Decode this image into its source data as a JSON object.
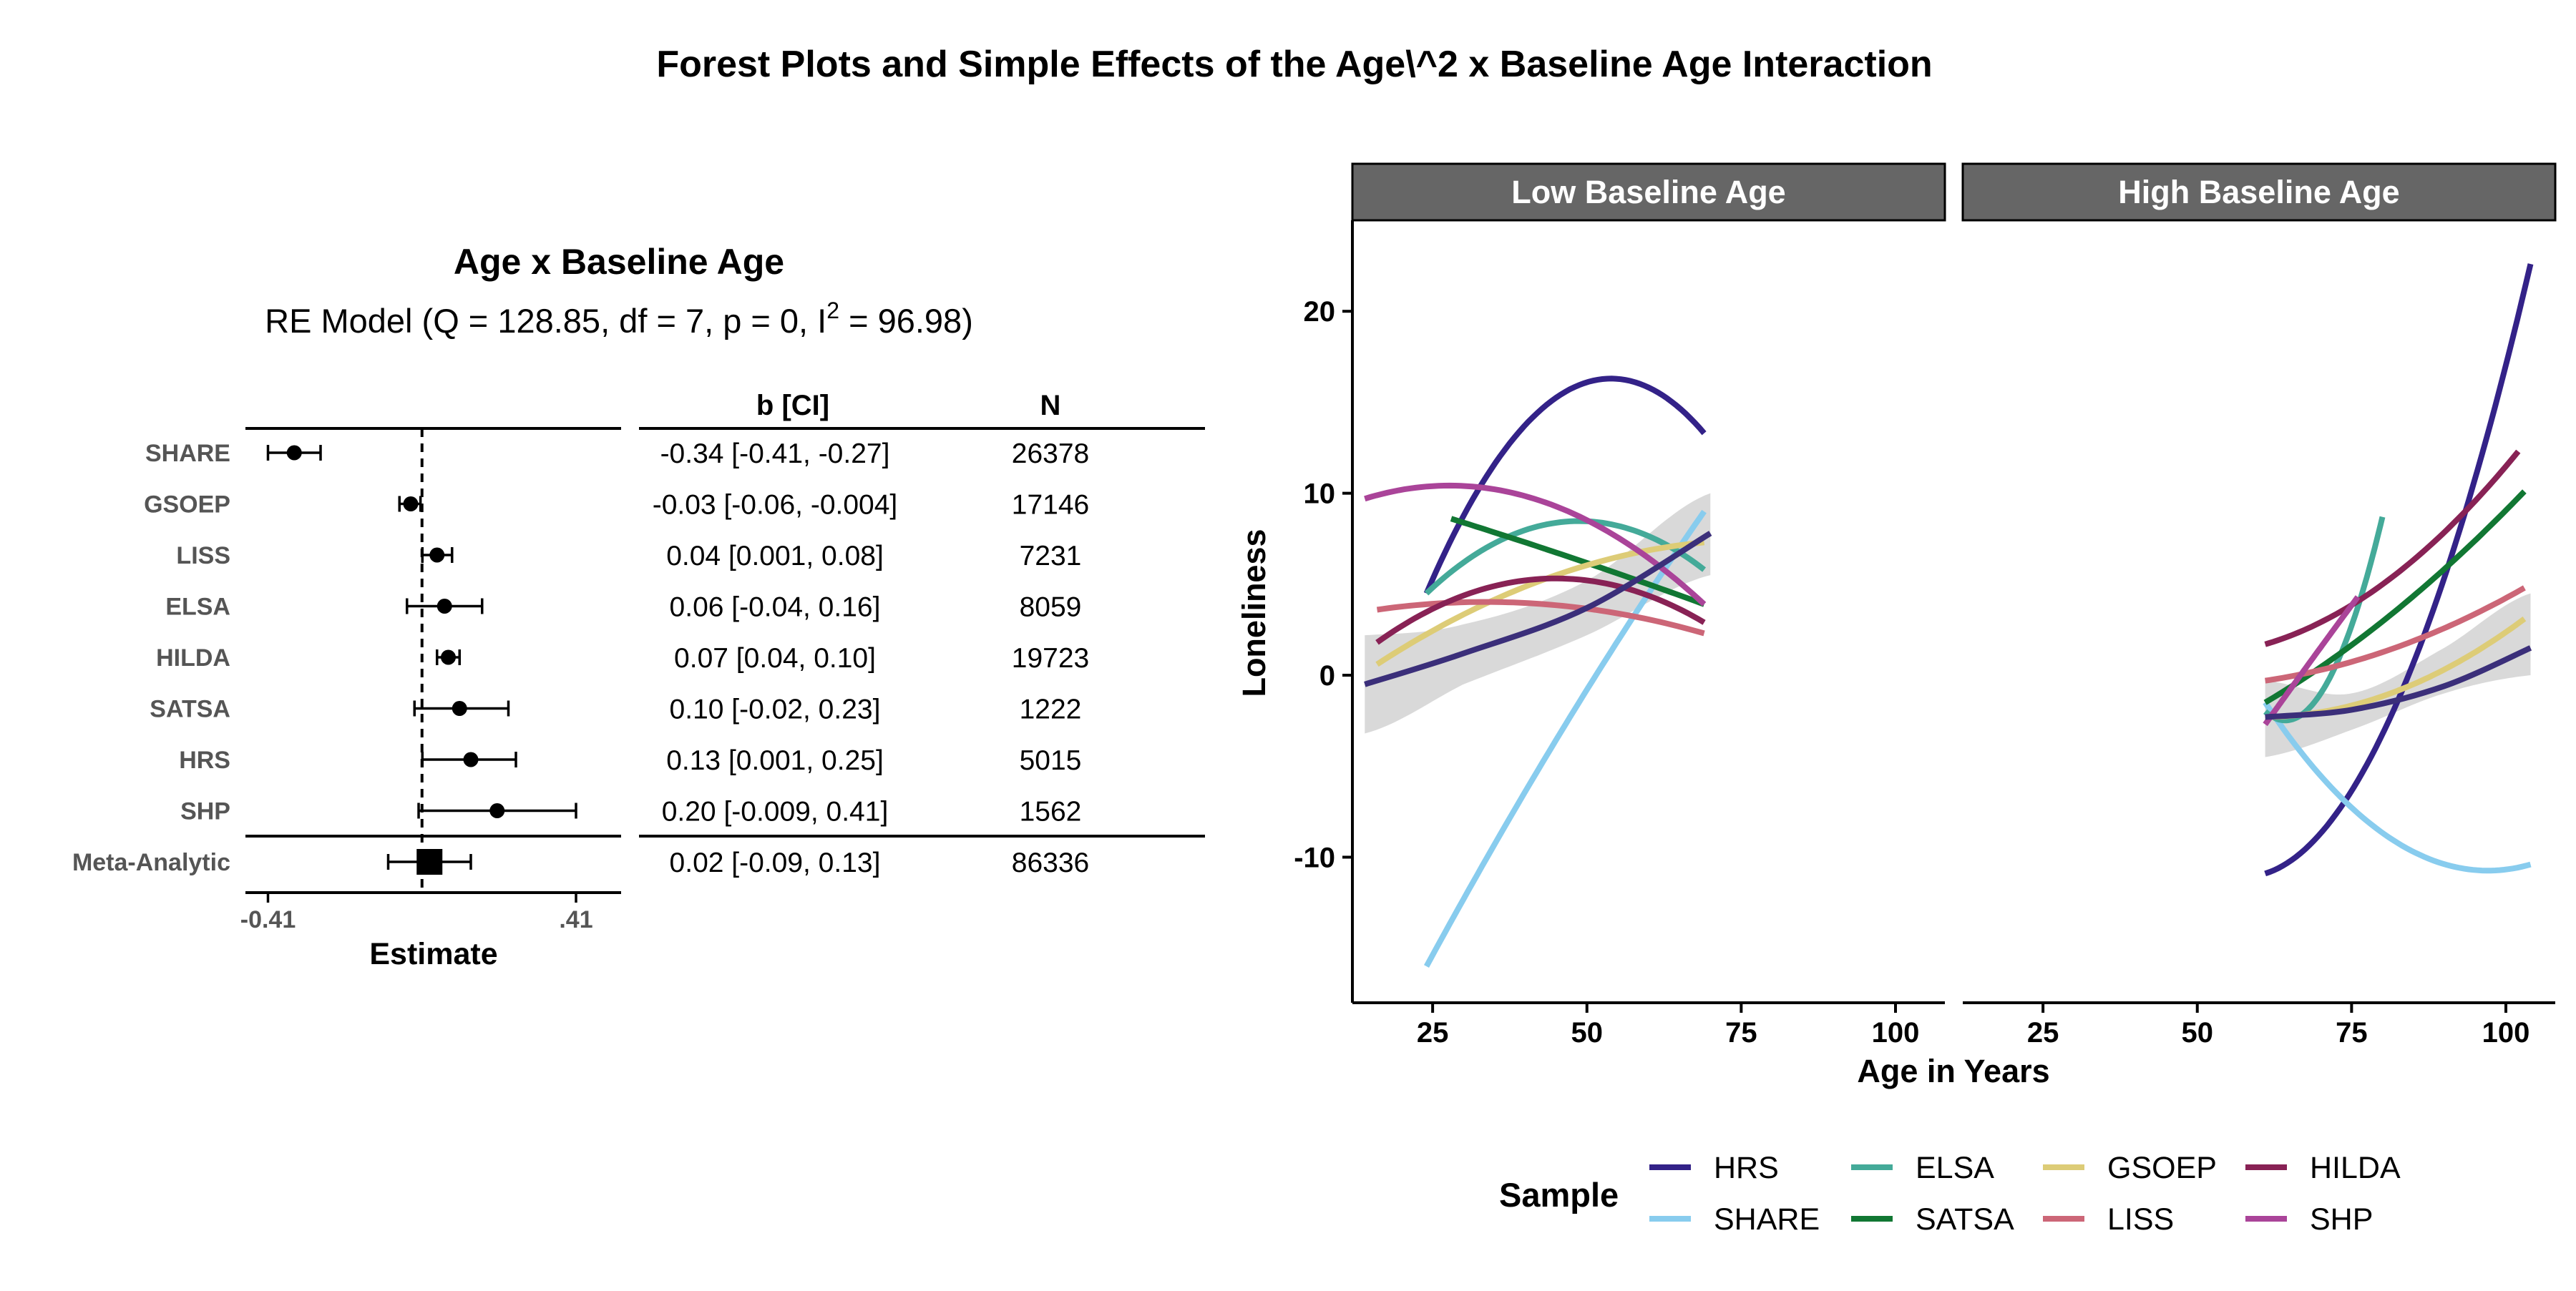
{
  "title": "Forest Plots and Simple Effects of the Age\\^2 x Baseline Age Interaction",
  "colors": {
    "HRS": "#332288",
    "SHARE": "#88CCEE",
    "ELSA": "#44AA99",
    "SATSA": "#117733",
    "GSOEP": "#DDCC77",
    "LISS": "#CC6677",
    "HILDA": "#882255",
    "SHP": "#AA4499",
    "average": "#3b2f7a",
    "ribbon": "#d2d2d2",
    "strip_bg": "#666666"
  },
  "chart_data": [
    {
      "type": "forest",
      "title": "Age x Baseline Age",
      "subtitle_prefix": "RE Model (Q = 128.85, df = 7, p = 0, I",
      "subtitle_sup": "2",
      "subtitle_suffix": " = 96.98)",
      "col_headers": [
        "b [CI]",
        "N"
      ],
      "xlabel": "Estimate",
      "xlim": [
        -0.47,
        0.53
      ],
      "xticks": [
        -0.41,
        0.41
      ],
      "xtick_labels": [
        "-0.41",
        ".41"
      ],
      "reference_line": 0,
      "studies": [
        {
          "name": "SHARE",
          "b": -0.34,
          "lo": -0.41,
          "hi": -0.27,
          "ci_text": "-0.34 [-0.41, -0.27]",
          "n": "26378"
        },
        {
          "name": "GSOEP",
          "b": -0.03,
          "lo": -0.06,
          "hi": -0.004,
          "ci_text": "-0.03 [-0.06, -0.004]",
          "n": "17146"
        },
        {
          "name": "LISS",
          "b": 0.04,
          "lo": 0.001,
          "hi": 0.08,
          "ci_text": "0.04 [0.001, 0.08]",
          "n": "7231"
        },
        {
          "name": "ELSA",
          "b": 0.06,
          "lo": -0.04,
          "hi": 0.16,
          "ci_text": "0.06 [-0.04, 0.16]",
          "n": "8059"
        },
        {
          "name": "HILDA",
          "b": 0.07,
          "lo": 0.04,
          "hi": 0.1,
          "ci_text": "0.07 [0.04, 0.10]",
          "n": "19723"
        },
        {
          "name": "SATSA",
          "b": 0.1,
          "lo": -0.02,
          "hi": 0.23,
          "ci_text": "0.10 [-0.02, 0.23]",
          "n": "1222"
        },
        {
          "name": "HRS",
          "b": 0.13,
          "lo": 0.001,
          "hi": 0.25,
          "ci_text": "0.13 [0.001, 0.25]",
          "n": "5015"
        },
        {
          "name": "SHP",
          "b": 0.2,
          "lo": -0.009,
          "hi": 0.41,
          "ci_text": "0.20 [-0.009, 0.41]",
          "n": "1562"
        }
      ],
      "meta": {
        "name": "Meta-Analytic",
        "b": 0.02,
        "lo": -0.09,
        "hi": 0.13,
        "ci_text": "0.02 [-0.09, 0.13]",
        "n": "86336"
      }
    },
    {
      "type": "line",
      "facets": [
        "Low Baseline Age",
        "High Baseline Age"
      ],
      "xlabel": "Age in Years",
      "ylabel": "Loneliness",
      "xlim": [
        12,
        108
      ],
      "ylim": [
        -18,
        25
      ],
      "xticks": [
        25,
        50,
        75,
        100
      ],
      "yticks": [
        -10,
        0,
        10,
        20
      ],
      "legend_title": "Sample",
      "legend_position": "bottom",
      "legend_order": [
        "HRS",
        "SHARE",
        "ELSA",
        "SATSA",
        "GSOEP",
        "LISS",
        "HILDA",
        "SHP"
      ],
      "panels": [
        {
          "facet": "Low Baseline Age",
          "ribbon": {
            "x": [
              14,
              30,
              50,
              70
            ],
            "lo": [
              -3.2,
              -0.5,
              2.2,
              5.5
            ],
            "hi": [
              2.2,
              2.8,
              5.2,
              10.0
            ]
          },
          "average": {
            "x": [
              14,
              30,
              50,
              70
            ],
            "y": [
              -0.5,
              1.2,
              3.7,
              7.8
            ]
          },
          "series": [
            {
              "name": "HRS",
              "x": [
                24,
                54,
                69
              ],
              "y": [
                4.5,
                16.3,
                13.3
              ]
            },
            {
              "name": "SHARE",
              "x": [
                24,
                46,
                69
              ],
              "y": [
                -16.0,
                -3.0,
                9.0
              ]
            },
            {
              "name": "ELSA",
              "x": [
                24,
                52,
                69
              ],
              "y": [
                4.5,
                8.4,
                5.8
              ]
            },
            {
              "name": "SATSA",
              "x": [
                28,
                48,
                69
              ],
              "y": [
                8.6,
                6.4,
                3.9
              ]
            },
            {
              "name": "GSOEP",
              "x": [
                16,
                45,
                69
              ],
              "y": [
                0.6,
                5.5,
                7.3
              ]
            },
            {
              "name": "LISS",
              "x": [
                16,
                38,
                69
              ],
              "y": [
                3.6,
                4.0,
                2.3
              ]
            },
            {
              "name": "HILDA",
              "x": [
                16,
                47,
                69
              ],
              "y": [
                1.8,
                5.3,
                2.9
              ]
            },
            {
              "name": "SHP",
              "x": [
                14,
                30,
                69
              ],
              "y": [
                9.7,
                10.4,
                3.9
              ]
            }
          ]
        },
        {
          "facet": "High Baseline Age",
          "ribbon": {
            "x": [
              61,
              75,
              90,
              104
            ],
            "lo": [
              -4.5,
              -3.0,
              -1.0,
              0.0
            ],
            "hi": [
              -0.3,
              -1.0,
              1.5,
              4.5
            ]
          },
          "average": {
            "x": [
              61,
              75,
              90,
              104
            ],
            "y": [
              -2.3,
              -1.9,
              -0.6,
              1.5
            ]
          },
          "series": [
            {
              "name": "HRS",
              "x": [
                61,
                83,
                104
              ],
              "y": [
                -10.9,
                -1.0,
                22.6
              ]
            },
            {
              "name": "SHARE",
              "x": [
                61,
                85,
                104
              ],
              "y": [
                -1.5,
                -9.7,
                -10.4
              ]
            },
            {
              "name": "ELSA",
              "x": [
                61,
                70,
                80
              ],
              "y": [
                -2.0,
                -1.0,
                8.7
              ]
            },
            {
              "name": "SATSA",
              "x": [
                61,
                82,
                103
              ],
              "y": [
                -1.5,
                3.5,
                10.1
              ]
            },
            {
              "name": "GSOEP",
              "x": [
                61,
                85,
                103
              ],
              "y": [
                -2.3,
                -0.5,
                3.1
              ]
            },
            {
              "name": "LISS",
              "x": [
                61,
                82,
                103
              ],
              "y": [
                -0.3,
                1.5,
                4.8
              ]
            },
            {
              "name": "HILDA",
              "x": [
                61,
                82,
                102
              ],
              "y": [
                1.7,
                5.5,
                12.3
              ]
            },
            {
              "name": "SHP",
              "x": [
                61,
                68,
                76
              ],
              "y": [
                -2.7,
                0.6,
                4.3
              ]
            }
          ]
        }
      ]
    }
  ]
}
